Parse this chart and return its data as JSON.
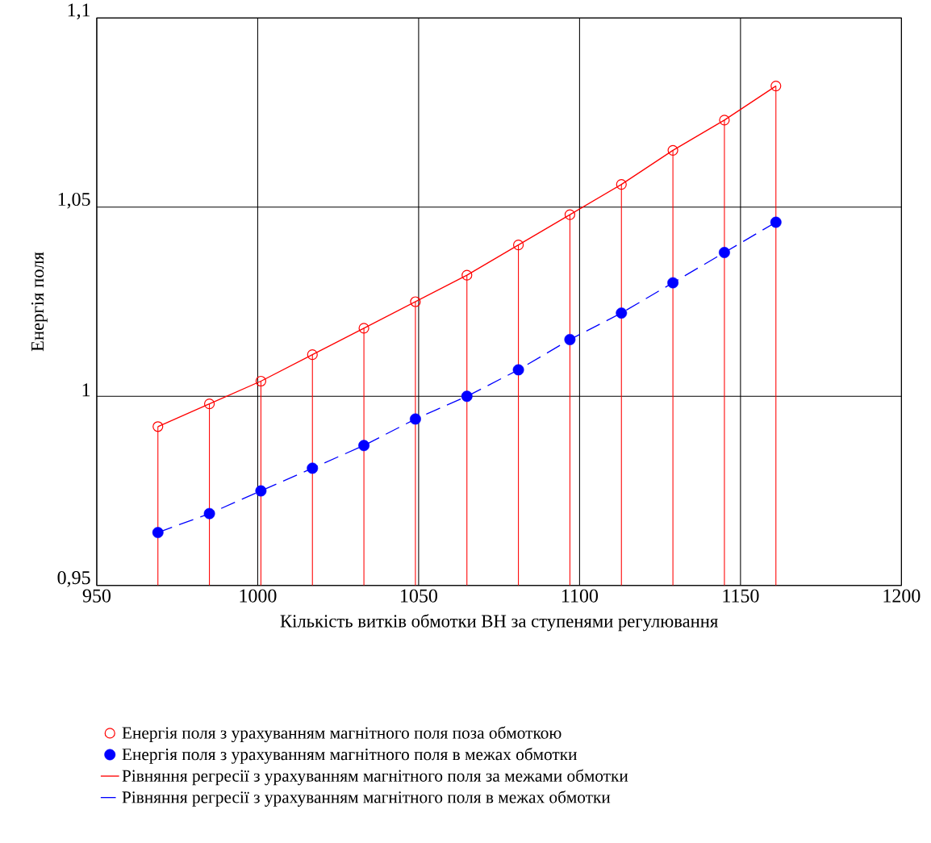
{
  "chart_data": {
    "type": "line",
    "xlabel": "Кількість витків обмотки ВН за ступенями регулювання",
    "ylabel": "Енергія поля",
    "x": [
      969,
      985,
      1001,
      1017,
      1033,
      1049,
      1065,
      1081,
      1097,
      1113,
      1129,
      1145,
      1161
    ],
    "series": [
      {
        "name": "Енергія поля з урахуванням магнітного поля поза обмоткою",
        "type": "lollipop",
        "marker": "circle",
        "color": "#ff0000",
        "values": [
          0.992,
          0.998,
          1.004,
          1.011,
          1.018,
          1.025,
          1.032,
          1.04,
          1.048,
          1.056,
          1.065,
          1.073,
          1.082
        ]
      },
      {
        "name": "Енергія поля з урахуванням магнітного поля в межах обмотки",
        "type": "scatter",
        "marker": "circle",
        "color": "#0000ff",
        "values": [
          0.964,
          0.969,
          0.975,
          0.981,
          0.987,
          0.994,
          1.0,
          1.007,
          1.015,
          1.022,
          1.03,
          1.038,
          1.046
        ]
      },
      {
        "name": "Рівняння регресії з урахуванням магнітного поля за межами обмотки",
        "line_style": "solid",
        "color": "#ff0000",
        "values": [
          0.992,
          0.998,
          1.004,
          1.011,
          1.018,
          1.025,
          1.032,
          1.04,
          1.048,
          1.056,
          1.065,
          1.073,
          1.082
        ]
      },
      {
        "name": "Рівняння регресії з урахуванням магнітного поля в межах обмотки",
        "line_style": "dashed",
        "color": "#0000ff",
        "values": [
          0.964,
          0.969,
          0.975,
          0.981,
          0.987,
          0.994,
          1.0,
          1.007,
          1.015,
          1.022,
          1.03,
          1.038,
          1.046
        ]
      }
    ],
    "xlim": [
      950,
      1200
    ],
    "ylim": [
      0.95,
      1.1
    ],
    "xticks": [
      950,
      1000,
      1050,
      1100,
      1150,
      1200
    ],
    "yticks": [
      {
        "value": 0.95,
        "label": "0,95"
      },
      1,
      {
        "value": 1.05,
        "label": "1,05"
      },
      {
        "value": 1.1,
        "label": "1,1"
      }
    ],
    "grid": true,
    "legend": "bottom"
  }
}
